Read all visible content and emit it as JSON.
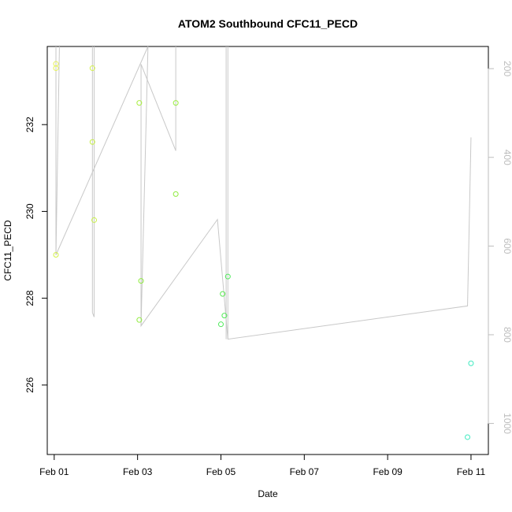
{
  "chart_data": {
    "type": "scatter",
    "title": "ATOM2 Southbound CFC11_PECD",
    "xlabel": "Date",
    "ylabel": "CFC11_PECD",
    "xlim": [
      "2016-01-31T20:00",
      "2016-02-11T10:00"
    ],
    "ylim": [
      224.4,
      233.8
    ],
    "y2lim": [
      1070,
      150
    ],
    "x_ticks": [
      {
        "date": "2016-02-01T00:00",
        "label": "Feb 01"
      },
      {
        "date": "2016-02-03T00:00",
        "label": "Feb 03"
      },
      {
        "date": "2016-02-05T00:00",
        "label": "Feb 05"
      },
      {
        "date": "2016-02-07T00:00",
        "label": "Feb 07"
      },
      {
        "date": "2016-02-09T00:00",
        "label": "Feb 09"
      },
      {
        "date": "2016-02-11T00:00",
        "label": "Feb 11"
      }
    ],
    "y_ticks": [
      226,
      228,
      230,
      232
    ],
    "y2_ticks": [
      200,
      400,
      600,
      800,
      1000
    ],
    "series": [
      {
        "kind": "points",
        "marker": "open-circle",
        "points": [
          {
            "x": "2016-02-01T01:00",
            "y": 233.4,
            "color": "#e6f25a"
          },
          {
            "x": "2016-02-01T01:00",
            "y": 233.3,
            "color": "#e6f25a"
          },
          {
            "x": "2016-02-01T01:00",
            "y": 229.0,
            "color": "#d4f24a"
          },
          {
            "x": "2016-02-01T22:00",
            "y": 233.3,
            "color": "#d4f24a"
          },
          {
            "x": "2016-02-01T22:00",
            "y": 231.6,
            "color": "#c8f046"
          },
          {
            "x": "2016-02-01T23:00",
            "y": 229.8,
            "color": "#c8f046"
          },
          {
            "x": "2016-02-03T01:00",
            "y": 232.5,
            "color": "#a8ee40"
          },
          {
            "x": "2016-02-03T01:00",
            "y": 227.5,
            "color": "#8eec3c"
          },
          {
            "x": "2016-02-03T02:00",
            "y": 228.4,
            "color": "#8eec3c"
          },
          {
            "x": "2016-02-03T22:00",
            "y": 232.5,
            "color": "#9aee40"
          },
          {
            "x": "2016-02-03T22:00",
            "y": 230.4,
            "color": "#8eec3c"
          },
          {
            "x": "2016-02-05T00:00",
            "y": 227.4,
            "color": "#4eea5a"
          },
          {
            "x": "2016-02-05T01:00",
            "y": 228.1,
            "color": "#5aea52"
          },
          {
            "x": "2016-02-05T02:00",
            "y": 227.6,
            "color": "#52ea58"
          },
          {
            "x": "2016-02-05T04:00",
            "y": 228.5,
            "color": "#4eea5a"
          },
          {
            "x": "2016-02-10T22:00",
            "y": 224.8,
            "color": "#40eac0"
          },
          {
            "x": "2016-02-11T00:00",
            "y": 226.5,
            "color": "#40eac0"
          }
        ]
      },
      {
        "kind": "line",
        "axis": "right",
        "color": "#c8c8c8",
        "points": [
          {
            "x": "2016-02-01T03:00",
            "y": 145
          },
          {
            "x": "2016-02-01T01:00",
            "y": 620
          },
          {
            "x": "2016-02-03T06:00",
            "y": 140
          },
          {
            "x": "2016-02-03T02:00",
            "y": 780
          },
          {
            "x": "2016-02-04T22:00",
            "y": 540
          },
          {
            "x": "2016-02-05T04:00",
            "y": 810
          },
          {
            "x": "2016-02-10T22:00",
            "y": 735
          },
          {
            "x": "2016-02-11T00:00",
            "y": 355
          }
        ]
      },
      {
        "kind": "segments",
        "axis": "right",
        "color": "#c8c8c8",
        "segments": [
          [
            {
              "x": "2016-02-01T01:00",
              "y": 150
            },
            {
              "x": "2016-02-01T01:00",
              "y": 620
            }
          ],
          [
            {
              "x": "2016-02-01T22:00",
              "y": 150
            },
            {
              "x": "2016-02-01T22:00",
              "y": 750
            }
          ],
          [
            {
              "x": "2016-02-01T23:00",
              "y": 150
            },
            {
              "x": "2016-02-01T23:00",
              "y": 760
            }
          ],
          [
            {
              "x": "2016-02-01T23:00",
              "y": 760
            },
            {
              "x": "2016-02-01T22:00",
              "y": 750
            }
          ],
          [
            {
              "x": "2016-02-03T02:00",
              "y": 190
            },
            {
              "x": "2016-02-03T02:00",
              "y": 780
            }
          ],
          [
            {
              "x": "2016-02-03T02:00",
              "y": 190
            },
            {
              "x": "2016-02-03T22:00",
              "y": 385
            }
          ],
          [
            {
              "x": "2016-02-03T22:00",
              "y": 150
            },
            {
              "x": "2016-02-03T22:00",
              "y": 385
            }
          ],
          [
            {
              "x": "2016-02-05T03:00",
              "y": 150
            },
            {
              "x": "2016-02-05T03:00",
              "y": 810
            }
          ],
          [
            {
              "x": "2016-02-05T04:00",
              "y": 150
            },
            {
              "x": "2016-02-05T04:00",
              "y": 810
            }
          ]
        ]
      }
    ]
  }
}
